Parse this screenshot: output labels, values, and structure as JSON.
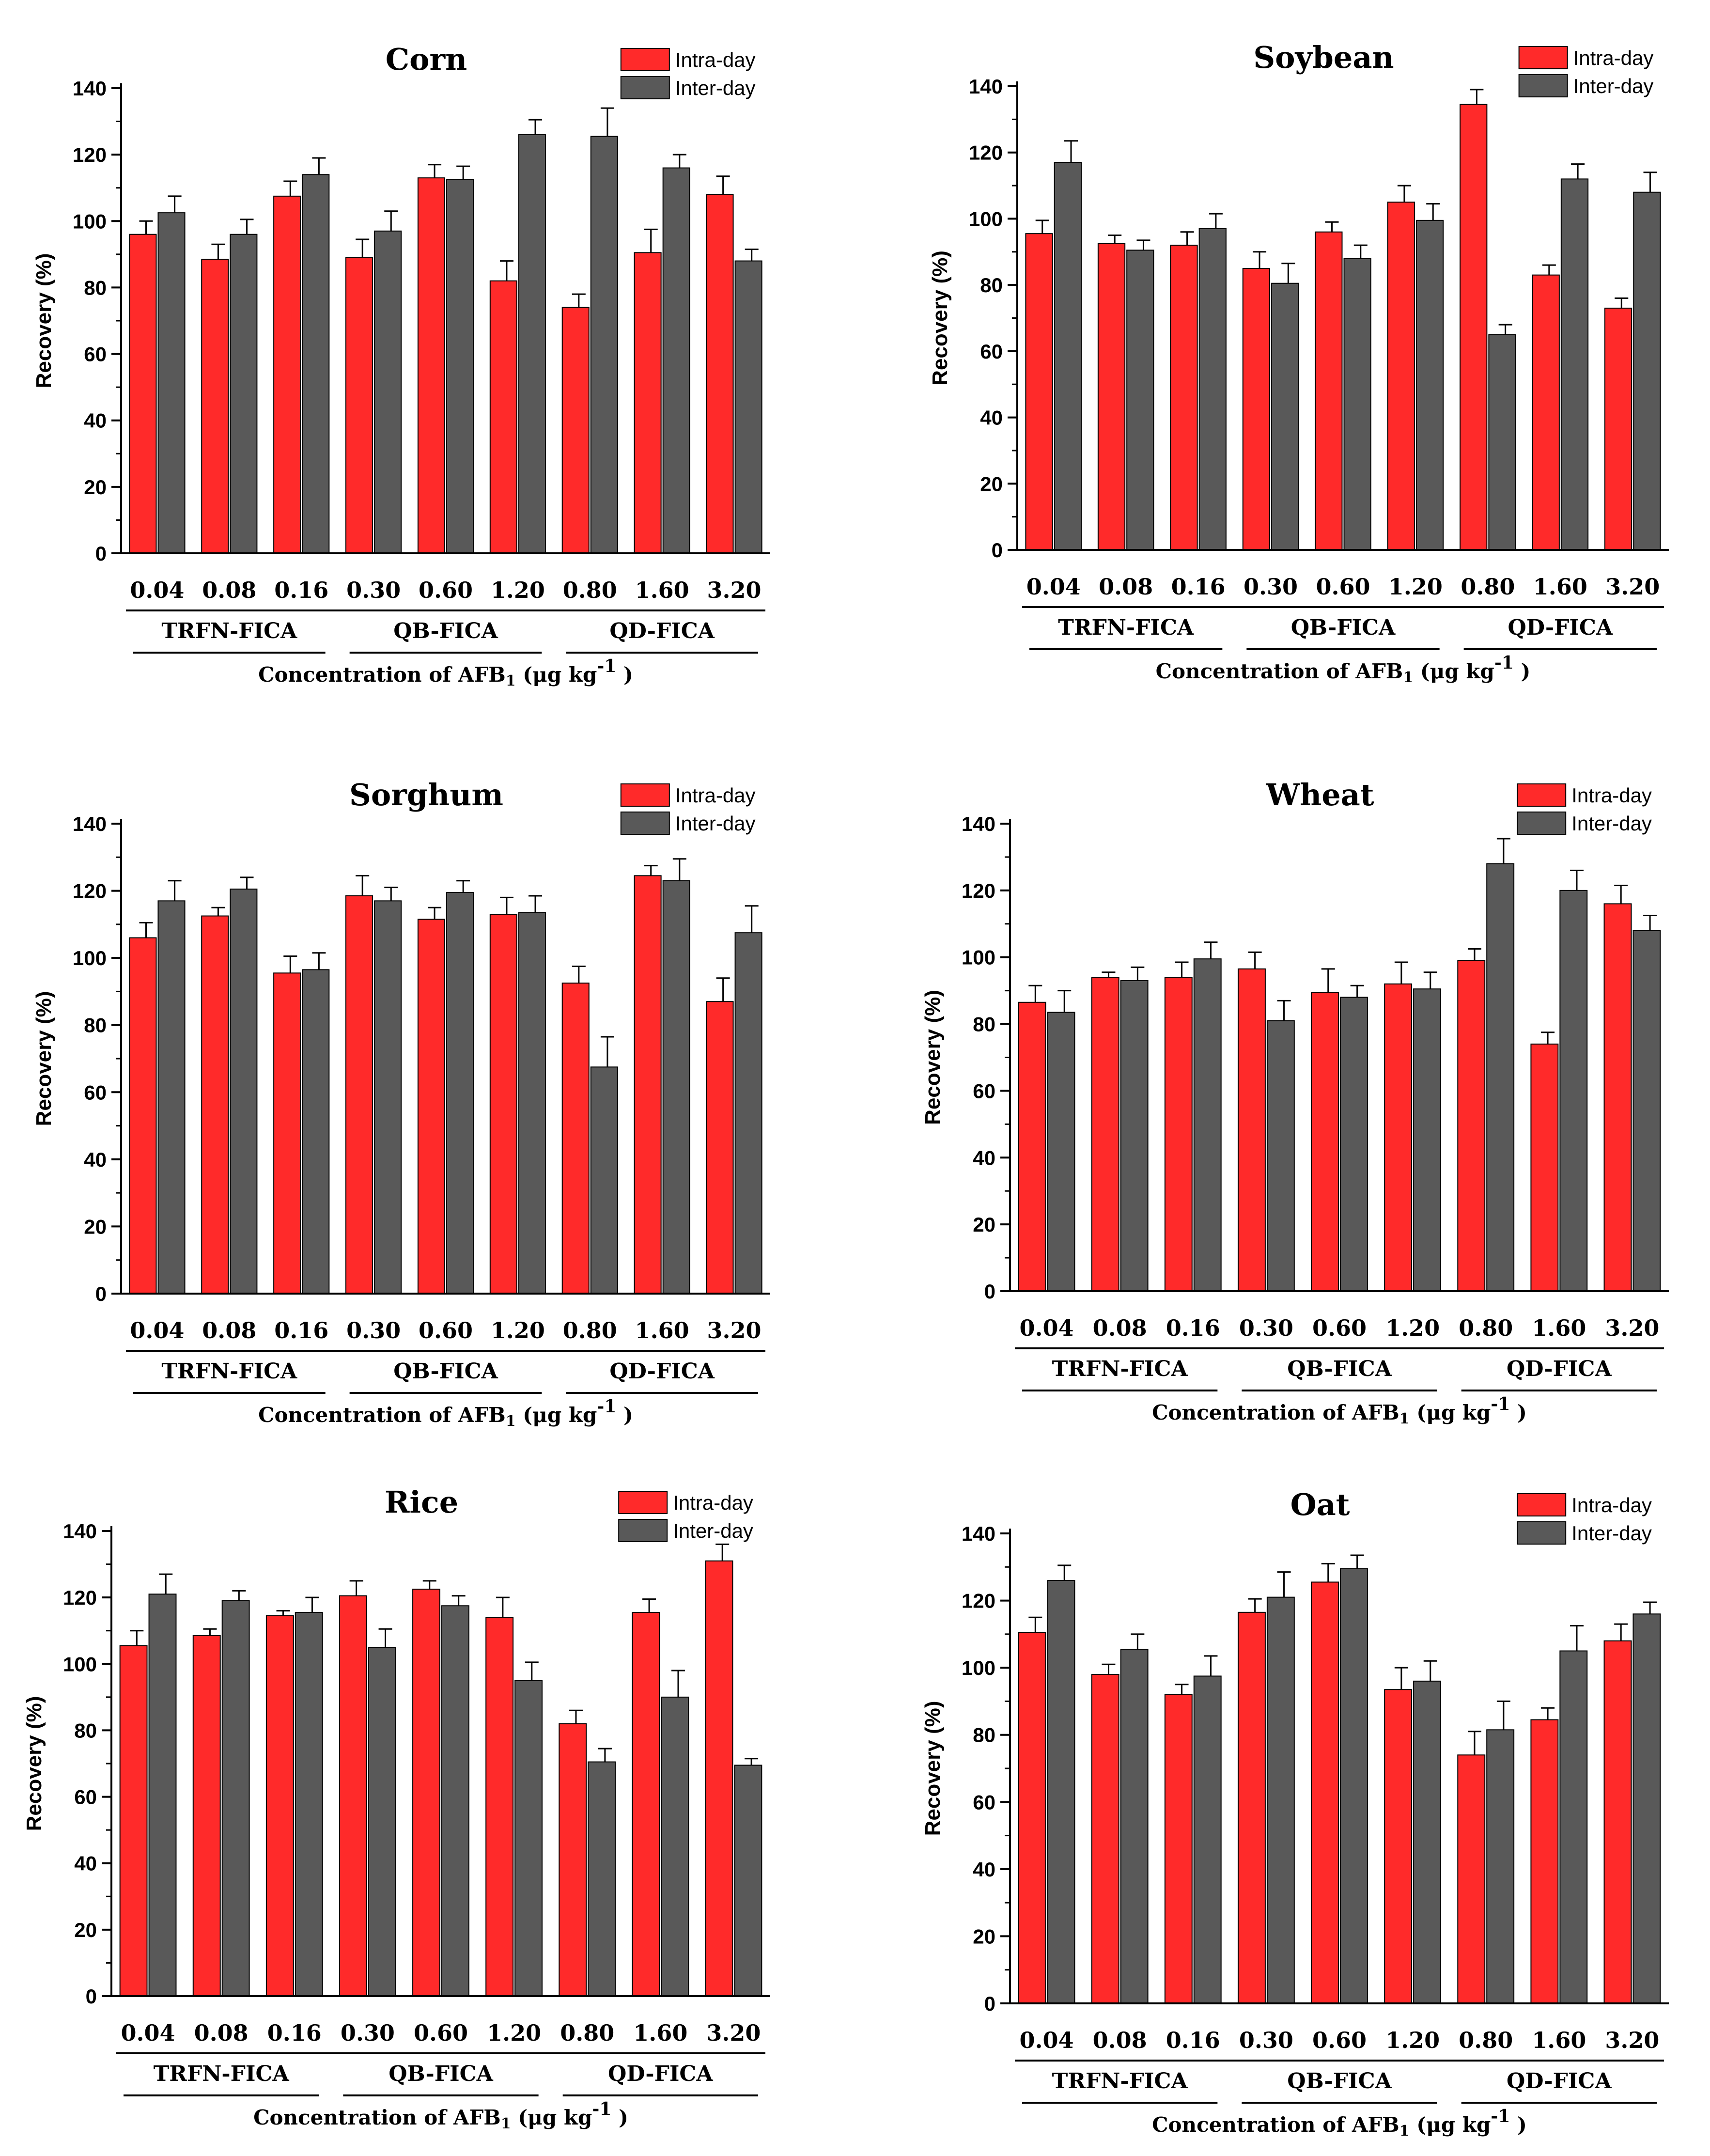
{
  "colors": {
    "intra": "#ff2a2a",
    "inter": "#595959",
    "axis": "#000000"
  },
  "chart_data": [
    {
      "type": "bar",
      "title": "Corn",
      "ylabel": "Recovery (%)",
      "xlabel": {
        "prefix": "Concentration of AFB",
        "sub": "1",
        "unit": " (μg kg",
        "sup": "-1",
        "close": " )"
      },
      "categories": [
        "0.04",
        "0.08",
        "0.16",
        "0.30",
        "0.60",
        "1.20",
        "0.80",
        "1.60",
        "3.20"
      ],
      "groups": [
        "TRFN-FICA",
        "QB-FICA",
        "QD-FICA"
      ],
      "ylim": [
        0,
        140
      ],
      "yticks": [
        "0",
        "20",
        "40",
        "60",
        "80",
        "100",
        "120",
        "140"
      ],
      "series": [
        {
          "name": "Intra-day",
          "values": [
            96,
            88.5,
            107.5,
            89,
            113,
            82,
            74,
            90.5,
            108
          ],
          "errors": [
            4,
            4.5,
            4.5,
            5.5,
            4,
            6,
            4,
            7,
            5.5
          ]
        },
        {
          "name": "Inter-day",
          "values": [
            102.5,
            96,
            114,
            97,
            112.5,
            126,
            125.5,
            116,
            88
          ],
          "errors": [
            5,
            4.5,
            5,
            6,
            4,
            4.5,
            8.5,
            4,
            3.5
          ]
        }
      ]
    },
    {
      "type": "bar",
      "title": "Soybean",
      "ylabel": "Recovery (%)",
      "xlabel": {
        "prefix": "Concentration of AFB",
        "sub": "1",
        "unit": " (μg kg",
        "sup": "-1",
        "close": " )"
      },
      "categories": [
        "0.04",
        "0.08",
        "0.16",
        "0.30",
        "0.60",
        "1.20",
        "0.80",
        "1.60",
        "3.20"
      ],
      "groups": [
        "TRFN-FICA",
        "QB-FICA",
        "QD-FICA"
      ],
      "ylim": [
        0,
        140
      ],
      "yticks": [
        "0",
        "20",
        "40",
        "60",
        "80",
        "100",
        "120",
        "140"
      ],
      "series": [
        {
          "name": "Intra-day",
          "values": [
            95.5,
            92.5,
            92,
            85,
            96,
            105,
            134.5,
            83,
            73
          ],
          "errors": [
            4,
            2.5,
            4,
            5,
            3,
            5,
            4.5,
            3,
            3
          ]
        },
        {
          "name": "Inter-day",
          "values": [
            117,
            90.5,
            97,
            80.5,
            88,
            99.5,
            65,
            112,
            108
          ],
          "errors": [
            6.5,
            3,
            4.5,
            6,
            4,
            5,
            3,
            4.5,
            6
          ]
        }
      ]
    },
    {
      "type": "bar",
      "title": "Sorghum",
      "ylabel": "Recovery (%)",
      "xlabel": {
        "prefix": "Concentration of AFB",
        "sub": "1",
        "unit": " (μg kg",
        "sup": "-1",
        "close": " )"
      },
      "categories": [
        "0.04",
        "0.08",
        "0.16",
        "0.30",
        "0.60",
        "1.20",
        "0.80",
        "1.60",
        "3.20"
      ],
      "groups": [
        "TRFN-FICA",
        "QB-FICA",
        "QD-FICA"
      ],
      "ylim": [
        0,
        140
      ],
      "yticks": [
        "0",
        "20",
        "40",
        "60",
        "80",
        "100",
        "120",
        "140"
      ],
      "series": [
        {
          "name": "Intra-day",
          "values": [
            106,
            112.5,
            95.5,
            118.5,
            111.5,
            113,
            92.5,
            124.5,
            87
          ],
          "errors": [
            4.5,
            2.5,
            5,
            6,
            3.5,
            5,
            5,
            3,
            7
          ]
        },
        {
          "name": "Inter-day",
          "values": [
            117,
            120.5,
            96.5,
            117,
            119.5,
            113.5,
            67.5,
            123,
            107.5
          ],
          "errors": [
            6,
            3.5,
            5,
            4,
            3.5,
            5,
            9,
            6.5,
            8
          ]
        }
      ]
    },
    {
      "type": "bar",
      "title": "Wheat",
      "ylabel": "Recovery (%)",
      "xlabel": {
        "prefix": "Concentration of AFB",
        "sub": "1",
        "unit": " (μg kg",
        "sup": "-1",
        "close": " )"
      },
      "categories": [
        "0.04",
        "0.08",
        "0.16",
        "0.30",
        "0.60",
        "1.20",
        "0.80",
        "1.60",
        "3.20"
      ],
      "groups": [
        "TRFN-FICA",
        "QB-FICA",
        "QD-FICA"
      ],
      "ylim": [
        0,
        140
      ],
      "yticks": [
        "0",
        "20",
        "40",
        "60",
        "80",
        "100",
        "120",
        "140"
      ],
      "series": [
        {
          "name": "Intra-day",
          "values": [
            86.5,
            94,
            94,
            96.5,
            89.5,
            92,
            99,
            74,
            116
          ],
          "errors": [
            5,
            1.5,
            4.5,
            5,
            7,
            6.5,
            3.5,
            3.5,
            5.5
          ]
        },
        {
          "name": "Inter-day",
          "values": [
            83.5,
            93,
            99.5,
            81,
            88,
            90.5,
            128,
            120,
            108
          ],
          "errors": [
            6.5,
            4,
            5,
            6,
            3.5,
            5,
            7.5,
            6,
            4.5
          ]
        }
      ]
    },
    {
      "type": "bar",
      "title": "Rice",
      "ylabel": "Recovery (%)",
      "xlabel": {
        "prefix": "Concentration of AFB",
        "sub": "1",
        "unit": " (μg kg",
        "sup": "-1",
        "close": " )"
      },
      "categories": [
        "0.04",
        "0.08",
        "0.16",
        "0.30",
        "0.60",
        "1.20",
        "0.80",
        "1.60",
        "3.20"
      ],
      "groups": [
        "TRFN-FICA",
        "QB-FICA",
        "QD-FICA"
      ],
      "ylim": [
        0,
        140
      ],
      "yticks": [
        "0",
        "20",
        "40",
        "60",
        "80",
        "100",
        "120",
        "140"
      ],
      "series": [
        {
          "name": "Intra-day",
          "values": [
            105.5,
            108.5,
            114.5,
            120.5,
            122.5,
            114,
            82,
            115.5,
            131
          ],
          "errors": [
            4.5,
            2,
            1.5,
            4.5,
            2.5,
            6,
            4,
            4,
            5
          ]
        },
        {
          "name": "Inter-day",
          "values": [
            121,
            119,
            115.5,
            105,
            117.5,
            95,
            70.5,
            90,
            69.5
          ],
          "errors": [
            6,
            3,
            4.5,
            5.5,
            3,
            5.5,
            4,
            8,
            2
          ]
        }
      ]
    },
    {
      "type": "bar",
      "title": "Oat",
      "ylabel": "Recovery (%)",
      "xlabel": {
        "prefix": "Concentration of AFB",
        "sub": "1",
        "unit": " (μg kg",
        "sup": "-1",
        "close": " )"
      },
      "categories": [
        "0.04",
        "0.08",
        "0.16",
        "0.30",
        "0.60",
        "1.20",
        "0.80",
        "1.60",
        "3.20"
      ],
      "groups": [
        "TRFN-FICA",
        "QB-FICA",
        "QD-FICA"
      ],
      "ylim": [
        0,
        140
      ],
      "yticks": [
        "0",
        "20",
        "40",
        "60",
        "80",
        "100",
        "120",
        "140"
      ],
      "series": [
        {
          "name": "Intra-day",
          "values": [
            110.5,
            98,
            92,
            116.5,
            125.5,
            93.5,
            74,
            84.5,
            108
          ],
          "errors": [
            4.5,
            3,
            3,
            4,
            5.5,
            6.5,
            7,
            3.5,
            5
          ]
        },
        {
          "name": "Inter-day",
          "values": [
            126,
            105.5,
            97.5,
            121,
            129.5,
            96,
            81.5,
            105,
            116
          ],
          "errors": [
            4.5,
            4.5,
            6,
            7.5,
            4,
            6,
            8.5,
            7.5,
            3.5
          ]
        }
      ]
    }
  ]
}
